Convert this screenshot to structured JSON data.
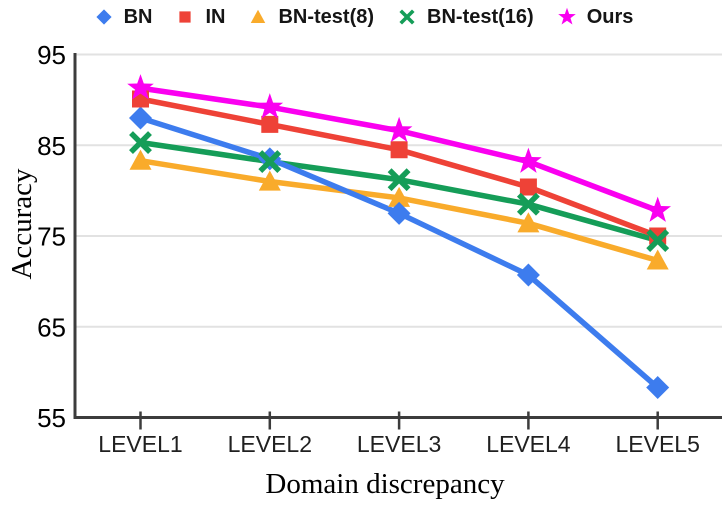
{
  "figure": {
    "background": "#FFFFFF"
  },
  "chart_data": {
    "type": "line",
    "title": "",
    "xlabel": "Domain discrepancy",
    "ylabel": "Accuracy",
    "categories": [
      "LEVEL1",
      "LEVEL2",
      "LEVEL3",
      "LEVEL4",
      "LEVEL5"
    ],
    "yticks": [
      95,
      85,
      75,
      65,
      55
    ],
    "ylim": [
      55,
      95
    ],
    "grid": "horizontal-light",
    "legend_position": "top-center",
    "colors": {
      "grid": "#E2E2E2",
      "axis": "#3C3C3C",
      "tick_text": "#000000",
      "axis_title_text": "#000000",
      "legend_text": "#151515"
    },
    "series": [
      {
        "name": "BN",
        "marker": "diamond",
        "color": "#3D7CEE",
        "values": [
          88.0,
          83.5,
          77.5,
          70.7,
          58.3
        ]
      },
      {
        "name": "IN",
        "marker": "square",
        "color": "#EE4237",
        "values": [
          90.1,
          87.3,
          84.5,
          80.4,
          75.0
        ]
      },
      {
        "name": "BN-test(8)",
        "marker": "triangle",
        "color": "#F9AB2B",
        "values": [
          83.3,
          81.0,
          79.2,
          76.4,
          72.3
        ]
      },
      {
        "name": "BN-test(16)",
        "marker": "x",
        "color": "#159D58",
        "values": [
          85.3,
          83.2,
          81.2,
          78.5,
          74.5
        ]
      },
      {
        "name": "Ours",
        "marker": "star",
        "color": "#FA00F0",
        "values": [
          91.3,
          89.2,
          86.6,
          83.2,
          77.8
        ]
      }
    ]
  }
}
